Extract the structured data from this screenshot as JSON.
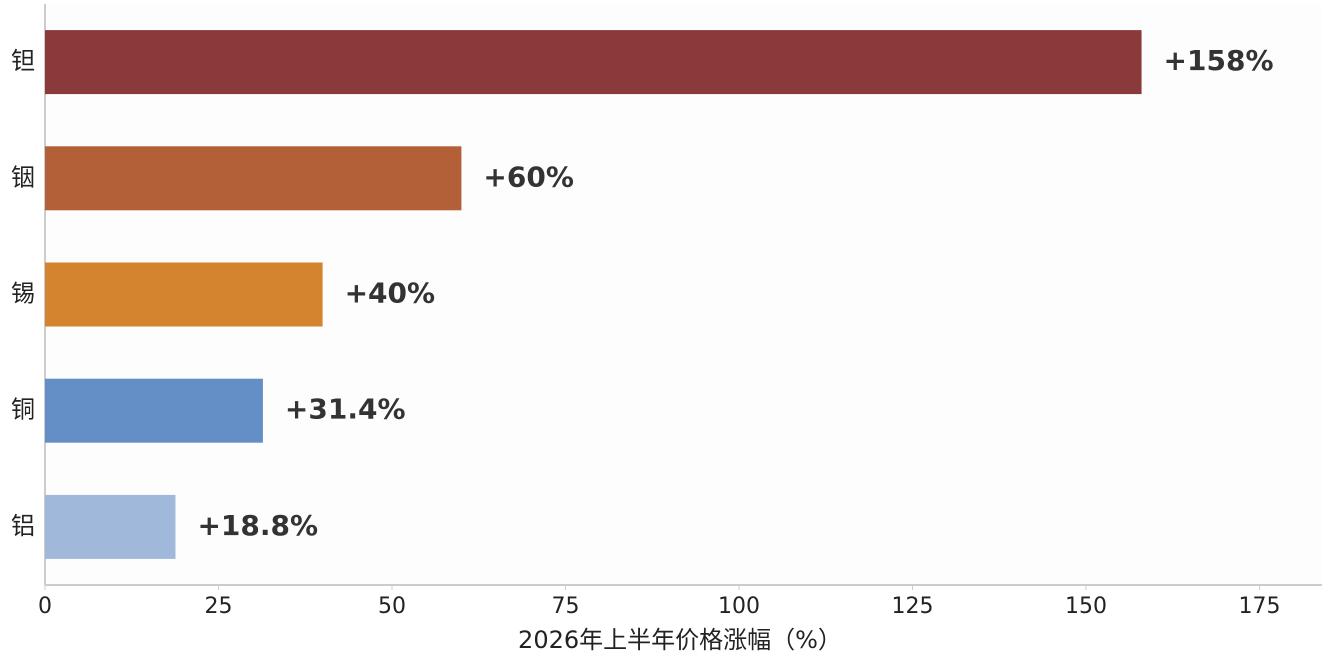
{
  "chart_data": {
    "type": "barh",
    "x_label": "2026年上半年价格涨幅（%）",
    "categories": [
      "钽",
      "铟",
      "锡",
      "铜",
      "铝"
    ],
    "values": [
      158,
      60,
      40,
      31.4,
      18.8
    ],
    "value_labels": [
      "+158%",
      "+60%",
      "+40%",
      "+31.4%",
      "+18.8%"
    ],
    "colors": [
      "#8b3a3c",
      "#b35f38",
      "#d4842f",
      "#648ec6",
      "#a0b8da"
    ],
    "xlim": [
      0,
      184
    ],
    "xticks": [
      0,
      25,
      50,
      75,
      100,
      125,
      150,
      175
    ]
  }
}
